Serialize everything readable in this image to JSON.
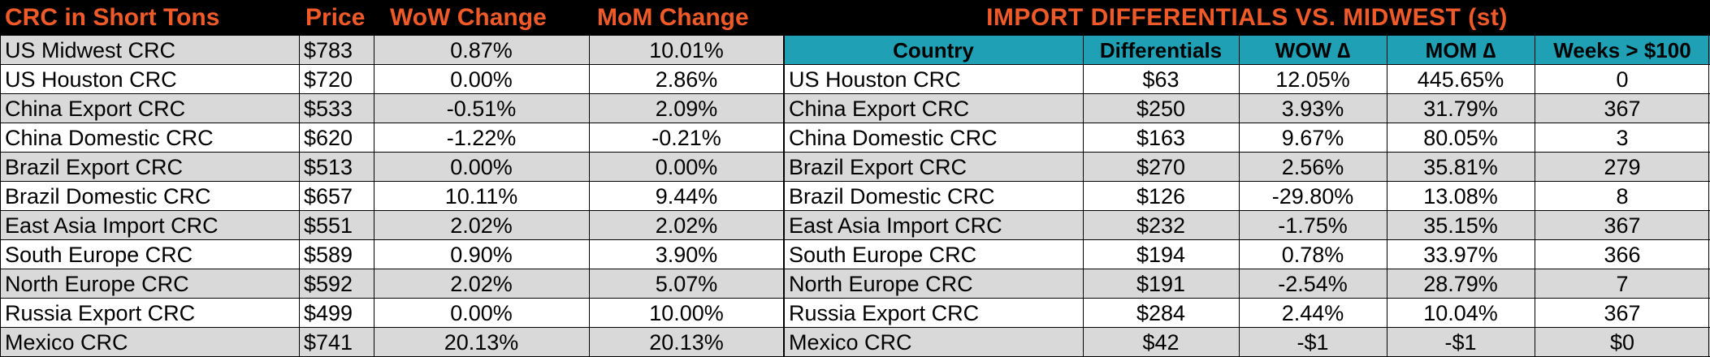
{
  "chart_data": [
    {
      "type": "table",
      "title": "CRC in Short Tons",
      "columns": [
        "CRC in Short Tons",
        "Price",
        "WoW Change",
        "MoM Change"
      ],
      "rows": [
        {
          "name": "US Midwest CRC",
          "price": "$783",
          "wow": "0.87%",
          "mom": "10.01%"
        },
        {
          "name": "US Houston CRC",
          "price": "$720",
          "wow": "0.00%",
          "mom": "2.86%"
        },
        {
          "name": "China Export CRC",
          "price": "$533",
          "wow": "-0.51%",
          "mom": "2.09%"
        },
        {
          "name": "China Domestic CRC",
          "price": "$620",
          "wow": "-1.22%",
          "mom": "-0.21%"
        },
        {
          "name": "Brazil Export CRC",
          "price": "$513",
          "wow": "0.00%",
          "mom": "0.00%"
        },
        {
          "name": "Brazil Domestic CRC",
          "price": "$657",
          "wow": "10.11%",
          "mom": "9.44%"
        },
        {
          "name": "East Asia Import CRC",
          "price": "$551",
          "wow": "2.02%",
          "mom": "2.02%"
        },
        {
          "name": "South Europe CRC",
          "price": "$589",
          "wow": "0.90%",
          "mom": "3.90%"
        },
        {
          "name": "North Europe CRC",
          "price": "$592",
          "wow": "2.02%",
          "mom": "5.07%"
        },
        {
          "name": "Russia Export CRC",
          "price": "$499",
          "wow": "0.00%",
          "mom": "10.00%"
        },
        {
          "name": "Mexico CRC",
          "price": "$741",
          "wow": "20.13%",
          "mom": "20.13%"
        }
      ]
    },
    {
      "type": "table",
      "title": "IMPORT DIFFERENTIALS VS. MIDWEST (st)",
      "columns": [
        "Country",
        "Differentials",
        "WOW ∆",
        "MOM ∆",
        "Weeks > $100"
      ],
      "rows": [
        {
          "name": "US Houston CRC",
          "diff": "$63",
          "wow": "12.05%",
          "mom": "445.65%",
          "weeks": "0"
        },
        {
          "name": "China Export CRC",
          "diff": "$250",
          "wow": "3.93%",
          "mom": "31.79%",
          "weeks": "367"
        },
        {
          "name": "China Domestic CRC",
          "diff": "$163",
          "wow": "9.67%",
          "mom": "80.05%",
          "weeks": "3"
        },
        {
          "name": "Brazil Export CRC",
          "diff": "$270",
          "wow": "2.56%",
          "mom": "35.81%",
          "weeks": "279"
        },
        {
          "name": "Brazil Domestic CRC",
          "diff": "$126",
          "wow": "-29.80%",
          "mom": "13.08%",
          "weeks": "8"
        },
        {
          "name": "East Asia Import CRC",
          "diff": "$232",
          "wow": "-1.75%",
          "mom": "35.15%",
          "weeks": "367"
        },
        {
          "name": "South Europe CRC",
          "diff": "$194",
          "wow": "0.78%",
          "mom": "33.97%",
          "weeks": "366"
        },
        {
          "name": "North Europe CRC",
          "diff": "$191",
          "wow": "-2.54%",
          "mom": "28.79%",
          "weeks": "7"
        },
        {
          "name": "Russia Export CRC",
          "diff": "$284",
          "wow": "2.44%",
          "mom": "10.04%",
          "weeks": "367"
        },
        {
          "name": "Mexico CRC",
          "diff": "$42",
          "wow": "-$1",
          "mom": "-$1",
          "weeks": "$0"
        }
      ]
    }
  ],
  "colors": {
    "header_bg": "#000000",
    "header_text": "#f05a28",
    "col_header_bg": "#1fa0b4",
    "row_grey": "#d9d9d9",
    "row_white": "#ffffff"
  }
}
